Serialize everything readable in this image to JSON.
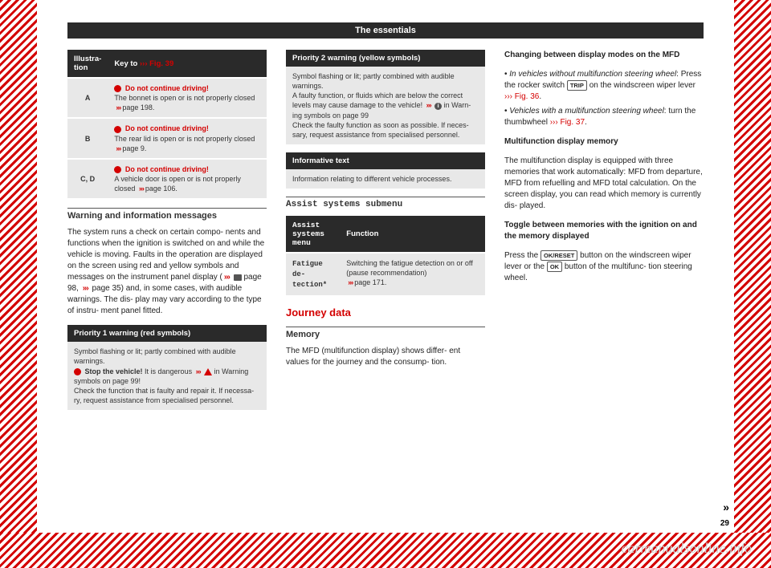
{
  "header": "The essentials",
  "pagenum": "29",
  "watermark": "carmanualsonline.info",
  "col1": {
    "table1": {
      "h1": "Illustra-\ntion",
      "h2_a": "Key to ",
      "h2_b": "››› Fig. 39",
      "rows": [
        {
          "label": "A",
          "warn": "Do not continue driving!",
          "txt": "The bonnet is open or is not properly closed ",
          "ref": "page 198."
        },
        {
          "label": "B",
          "warn": "Do not continue driving!",
          "txt": "The rear lid is open or is not properly closed ",
          "ref": "page 9."
        },
        {
          "label": "C, D",
          "warn": "Do not continue driving!",
          "txt": "A vehicle door is open or is not properly closed ",
          "ref": "page 106."
        }
      ]
    },
    "sec1_title": "Warning and information messages",
    "sec1_body_a": "The system runs a check on certain compo-\nnents and functions when the ignition is switched on and while the vehicle is moving. Faults in the operation are displayed on the screen using red and yellow symbols and messages on the instrument panel display (",
    "sec1_body_b": " page 98, ",
    "sec1_body_c": " page 35) and, in some cases, with audible warnings. The dis-\nplay may vary according to the type of instru-\nment panel fitted.",
    "box1_head": "Priority 1 warning (red symbols)",
    "box1_a": "Symbol flashing or lit; partly combined with audible warnings.",
    "box1_b": " Stop the vehicle!",
    "box1_c": " It is dangerous ",
    "box1_d": " in Warning symbols on page 99!",
    "box1_e": "Check the function that is faulty and repair it. If necessa-\nry, request assistance from specialised personnel."
  },
  "col2": {
    "box2_head": "Priority 2 warning (yellow symbols)",
    "box2_a": "Symbol flashing or lit; partly combined with audible warnings.",
    "box2_b": "A faulty function, or fluids which are below the correct levels may cause damage to the vehicle! ",
    "box2_c": " in Warn-\ning symbols on page 99",
    "box2_d": "Check the faulty function as soon as possible. If neces-\nsary, request assistance from specialised personnel.",
    "box3_head": "Informative text",
    "box3_a": "Information relating to different vehicle processes.",
    "sec2_title": "Assist systems submenu",
    "table2": {
      "h1": "Assist\nsystems\nmenu",
      "h2": "Function",
      "r1a": "Fatigue de-\ntection*",
      "r1b": "Switching the fatigue detection on or off (pause recommendation) ",
      "r1c": "page 171."
    },
    "journey_title": "Journey data",
    "sec3_title": "Memory",
    "sec3_body": "The MFD (multifunction display) shows differ-\nent values for the journey and the consump-\ntion."
  },
  "col3": {
    "h1": "Changing between display modes on the MFD",
    "b1a": "In vehicles without multifunction steering wheel",
    "b1b": ": Press the rocker switch ",
    "b1c": " on the windscreen wiper lever ",
    "b1d": "››› Fig. 36",
    "b2a": "Vehicles with a multifunction steering wheel",
    "b2b": ": turn the thumbwheel ",
    "b2c": "››› Fig. 37",
    "h2": "Multifunction display memory",
    "p2": "The multifunction display is equipped with three memories that work automatically: MFD from departure, MFD from refuelling and MFD total calculation. On the screen display, you can read which memory is currently dis-\nplayed.",
    "h3": "Toggle between memories with the ignition on and the memory displayed",
    "p3a": "Press the ",
    "p3b": " button on the windscreen wiper lever or the ",
    "p3c": " button of the multifunc-\ntion steering wheel.",
    "key1": "TRIP",
    "key2": "OK/RESET",
    "key3": "OK"
  }
}
